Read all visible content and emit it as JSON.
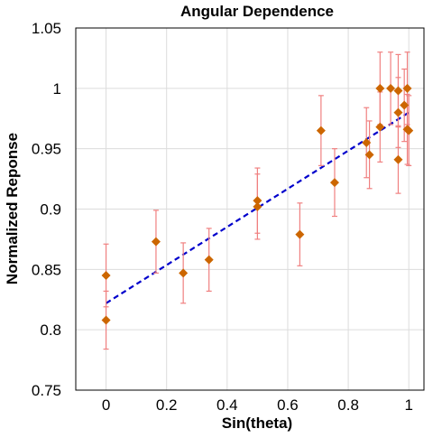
{
  "chart_data": {
    "type": "scatter",
    "title": "Angular Dependence",
    "xlabel": "Sin(theta)",
    "ylabel": "Normalized Reponse",
    "xlim": [
      -0.1,
      1.05
    ],
    "ylim": [
      0.75,
      1.05
    ],
    "xticks": [
      0,
      0.2,
      0.4,
      0.6,
      0.8,
      1
    ],
    "xtick_labels": [
      "0",
      "0.2",
      "0.4",
      "0.6",
      "0.8",
      "1"
    ],
    "yticks": [
      0.75,
      0.8,
      0.85,
      0.9,
      0.95,
      1,
      1.05
    ],
    "ytick_labels": [
      "0.75",
      "0.8",
      "0.85",
      "0.9",
      "0.95",
      "1",
      "1.05"
    ],
    "grid": true,
    "marker_color": "#cc6600",
    "errorbar_color": "#f08080",
    "fit_color": "#0000cc",
    "points": [
      {
        "x": 0.0,
        "y": 0.845,
        "err": 0.026
      },
      {
        "x": 0.0,
        "y": 0.808,
        "err": 0.024
      },
      {
        "x": 0.165,
        "y": 0.873,
        "err": 0.026
      },
      {
        "x": 0.255,
        "y": 0.847,
        "err": 0.025
      },
      {
        "x": 0.34,
        "y": 0.858,
        "err": 0.026
      },
      {
        "x": 0.5,
        "y": 0.907,
        "err": 0.027
      },
      {
        "x": 0.5,
        "y": 0.902,
        "err": 0.027
      },
      {
        "x": 0.64,
        "y": 0.879,
        "err": 0.026
      },
      {
        "x": 0.71,
        "y": 0.965,
        "err": 0.029
      },
      {
        "x": 0.755,
        "y": 0.922,
        "err": 0.028
      },
      {
        "x": 0.86,
        "y": 0.955,
        "err": 0.029
      },
      {
        "x": 0.87,
        "y": 0.945,
        "err": 0.028
      },
      {
        "x": 0.905,
        "y": 1.0,
        "err": 0.03
      },
      {
        "x": 0.905,
        "y": 0.968,
        "err": 0.029
      },
      {
        "x": 0.94,
        "y": 1.0,
        "err": 0.03
      },
      {
        "x": 0.965,
        "y": 0.998,
        "err": 0.03
      },
      {
        "x": 0.965,
        "y": 0.98,
        "err": 0.029
      },
      {
        "x": 0.965,
        "y": 0.941,
        "err": 0.028
      },
      {
        "x": 0.985,
        "y": 0.986,
        "err": 0.03
      },
      {
        "x": 0.995,
        "y": 1.0,
        "err": 0.03
      },
      {
        "x": 0.995,
        "y": 0.966,
        "err": 0.029
      },
      {
        "x": 1.0,
        "y": 0.965,
        "err": 0.029
      }
    ],
    "fit_line": {
      "style": "dashed",
      "x": [
        0.0,
        1.0
      ],
      "y": [
        0.822,
        0.98
      ]
    }
  }
}
